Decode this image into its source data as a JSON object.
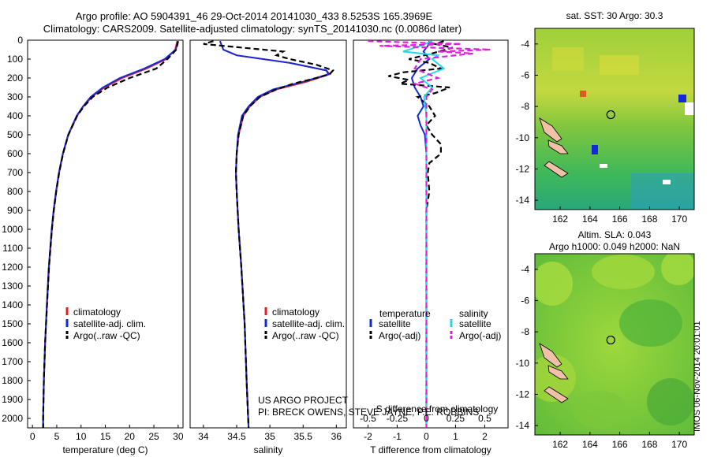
{
  "header": {
    "line1": "Argo profile: AO 5904391_46 29-Oct-2014 20141030_433 8.5253S 165.3969E",
    "line2": "Climatology: CARS2009. Satellite-adjusted climatology: synTS_20141030.nc (0.0086d later)"
  },
  "colors": {
    "climatology": "#e02020",
    "satellite": "#1428d8",
    "argo": "#000000",
    "sal_satellite": "#22d8e8",
    "sal_argo": "#e020d8"
  },
  "chart_data": [
    {
      "id": "temperature-profile",
      "type": "line",
      "xlabel": "temperature (deg C)",
      "xlim": [
        -1,
        31
      ],
      "xticks": [
        0,
        5,
        10,
        15,
        20,
        25,
        30
      ],
      "ylim": [
        2050,
        0
      ],
      "yticks": [
        0,
        100,
        200,
        300,
        400,
        500,
        600,
        700,
        800,
        900,
        1000,
        1100,
        1200,
        1300,
        1400,
        1500,
        1600,
        1700,
        1800,
        1900,
        2000
      ],
      "legend": [
        "climatology",
        "satellite-adj. clim.",
        "Argo(..raw -QC)"
      ],
      "series": [
        {
          "name": "climatology",
          "color": "#e02020",
          "style": "solid",
          "depth": [
            5,
            50,
            100,
            150,
            200,
            250,
            300,
            350,
            400,
            500,
            600,
            700,
            800,
            900,
            1000,
            1200,
            1400,
            1600,
            1800,
            2000,
            2050
          ],
          "values": [
            29.8,
            29.4,
            27.5,
            23.5,
            18.5,
            14.8,
            12.2,
            10.5,
            9.2,
            7.4,
            6.3,
            5.5,
            4.9,
            4.4,
            4.0,
            3.4,
            3.0,
            2.6,
            2.35,
            2.2,
            2.2
          ]
        },
        {
          "name": "satellite-adj. clim.",
          "color": "#1428d8",
          "style": "solid",
          "depth": [
            5,
            50,
            100,
            150,
            200,
            250,
            300,
            350,
            400,
            500,
            600,
            700,
            800,
            900,
            1000,
            1200,
            1400,
            1600,
            1800,
            2000,
            2050
          ],
          "values": [
            30.0,
            29.5,
            27.2,
            23.0,
            18.0,
            14.5,
            12.0,
            10.4,
            9.1,
            7.35,
            6.25,
            5.45,
            4.85,
            4.35,
            3.95,
            3.35,
            2.95,
            2.6,
            2.35,
            2.2,
            2.2
          ]
        },
        {
          "name": "Argo(..raw -QC)",
          "color": "#000000",
          "style": "dash",
          "depth": [
            5,
            50,
            100,
            150,
            200,
            250,
            300,
            350,
            400,
            500,
            600,
            700,
            800,
            900,
            1000,
            1200,
            1400,
            1600,
            1800,
            2000,
            2050
          ],
          "values": [
            30.0,
            29.6,
            27.8,
            25.5,
            20.0,
            15.5,
            12.4,
            10.6,
            9.2,
            7.4,
            6.3,
            5.5,
            4.9,
            4.4,
            4.0,
            3.4,
            3.0,
            2.6,
            2.35,
            2.2,
            2.2
          ]
        }
      ]
    },
    {
      "id": "salinity-profile",
      "type": "line",
      "xlabel": "salinity",
      "xlim": [
        33.8,
        36.15
      ],
      "xticks": [
        34,
        34.5,
        35,
        35.5,
        36
      ],
      "ylim": [
        2050,
        0
      ],
      "legend": [
        "climatology",
        "satellite-adj. clim.",
        "Argo(..raw -QC)"
      ],
      "series": [
        {
          "name": "climatology",
          "color": "#e02020",
          "style": "solid",
          "depth": [
            5,
            50,
            80,
            120,
            160,
            180,
            220,
            260,
            300,
            350,
            400,
            500,
            600,
            700,
            800,
            1000,
            1200,
            1500,
            1800,
            2050
          ],
          "values": [
            34.25,
            34.3,
            34.5,
            35.3,
            35.85,
            35.9,
            35.55,
            35.1,
            34.85,
            34.7,
            34.6,
            34.53,
            34.5,
            34.49,
            34.5,
            34.53,
            34.57,
            34.62,
            34.65,
            34.68
          ]
        },
        {
          "name": "satellite-adj. clim.",
          "color": "#1428d8",
          "style": "solid",
          "depth": [
            5,
            50,
            80,
            120,
            160,
            180,
            220,
            260,
            300,
            350,
            400,
            500,
            600,
            700,
            800,
            1000,
            1200,
            1500,
            1800,
            2050
          ],
          "values": [
            34.25,
            34.3,
            34.5,
            35.3,
            35.85,
            35.88,
            35.5,
            35.05,
            34.82,
            34.68,
            34.58,
            34.52,
            34.5,
            34.49,
            34.5,
            34.53,
            34.57,
            34.62,
            34.65,
            34.68
          ]
        },
        {
          "name": "Argo(..raw -QC)",
          "color": "#000000",
          "style": "dash",
          "depth": [
            5,
            20,
            40,
            60,
            80,
            100,
            130,
            160,
            180,
            200,
            230,
            260,
            300,
            350,
            400,
            500,
            600,
            700,
            800,
            1000,
            1200,
            1500,
            1800,
            2050
          ],
          "values": [
            34.15,
            34.0,
            34.6,
            35.2,
            35.1,
            35.3,
            35.7,
            35.95,
            35.9,
            35.7,
            35.35,
            35.1,
            34.85,
            34.7,
            34.6,
            34.53,
            34.5,
            34.49,
            34.5,
            34.53,
            34.57,
            34.62,
            34.65,
            34.68
          ]
        }
      ]
    },
    {
      "id": "difference-profile",
      "type": "line",
      "xlabel": "T difference from climatology",
      "xlabel_top": "S difference from climatology",
      "xlim": [
        -2.5,
        2.8
      ],
      "xticks": [
        -2,
        -1,
        0,
        1,
        2
      ],
      "xticks_s": [
        -0.5,
        -0.25,
        0,
        0.25,
        0.5
      ],
      "ylim": [
        2050,
        0
      ],
      "legend_headers": [
        "temperature",
        "salinity"
      ],
      "legend": [
        "satellite",
        "Argo(-adj)",
        "satellite",
        "Argo(-adj)"
      ],
      "series": [
        {
          "name": "T satellite",
          "color": "#1428d8",
          "style": "solid",
          "depth": [
            5,
            30,
            60,
            100,
            150,
            200,
            250,
            300,
            350,
            400,
            450,
            500,
            600,
            800,
            1000,
            1500,
            2000,
            2050
          ],
          "values": [
            0.1,
            0.05,
            -0.1,
            0.1,
            -0.3,
            -0.5,
            -0.4,
            -0.2,
            -0.1,
            -0.3,
            -0.2,
            -0.05,
            0.0,
            0.0,
            0.0,
            0.0,
            0.0,
            0.0
          ]
        },
        {
          "name": "T Argo(-adj)",
          "color": "#000000",
          "style": "dash",
          "depth": [
            5,
            20,
            40,
            70,
            100,
            120,
            150,
            170,
            190,
            210,
            230,
            250,
            280,
            300,
            350,
            400,
            450,
            500,
            550,
            600,
            650,
            700,
            800,
            900,
            1000,
            1500,
            2000,
            2050
          ],
          "values": [
            0.6,
            0.3,
            0.9,
            0.2,
            -0.6,
            0.1,
            0.5,
            -0.8,
            -1.3,
            -0.6,
            -0.9,
            0.8,
            0.3,
            -0.3,
            0.1,
            0.3,
            0.0,
            0.2,
            0.5,
            0.5,
            0.1,
            0.05,
            0.1,
            0.0,
            0.0,
            0.0,
            0.0,
            0.0
          ]
        },
        {
          "name": "S satellite",
          "color": "#22d8e8",
          "style": "solid",
          "depth": [
            5,
            30,
            60,
            80,
            100,
            150,
            200,
            250,
            300,
            400,
            500,
            800,
            1000,
            1500,
            2000,
            2050
          ],
          "values": [
            0.05,
            -0.05,
            -0.2,
            0.1,
            0.05,
            0.15,
            -0.05,
            0.05,
            -0.02,
            0.0,
            0.0,
            0.0,
            0.0,
            0.0,
            0.0,
            0.0
          ]
        },
        {
          "name": "S Argo(-adj)",
          "color": "#e020d8",
          "style": "dash",
          "depth": [
            5,
            20,
            30,
            50,
            60,
            70,
            100,
            150,
            200,
            230,
            260,
            300,
            400,
            500,
            800,
            1000,
            1500,
            2000,
            2050
          ],
          "values": [
            -0.5,
            0.3,
            -0.4,
            0.55,
            0.1,
            0.4,
            -0.05,
            -0.1,
            0.1,
            -0.1,
            0.05,
            0.0,
            0.0,
            0.0,
            0.0,
            0.0,
            0.0,
            0.0,
            0.0
          ]
        }
      ]
    }
  ],
  "maps": {
    "sst": {
      "title": "sat. SST: 30 Argo: 30.3",
      "yticks": [
        -4,
        -6,
        -8,
        -10,
        -12,
        -14
      ],
      "xticks": [
        162,
        164,
        166,
        168,
        170
      ]
    },
    "sla": {
      "title1": "Altim. SLA: 0.043",
      "title2": "Argo h1000: 0.049 h2000: NaN",
      "yticks": [
        -4,
        -6,
        -8,
        -10,
        -12,
        -14
      ],
      "xticks": [
        162,
        164,
        166,
        168,
        170
      ]
    },
    "profile_location": {
      "lat": -8.5253,
      "lon": 165.3969
    }
  },
  "credits": {
    "line1": "US ARGO PROJECT",
    "line2": "PI: BRECK OWENS, STEVE JAYNE, P.E. ROBBINS"
  },
  "stamp": "IMOS 06-Nov-2014 20:01:01"
}
